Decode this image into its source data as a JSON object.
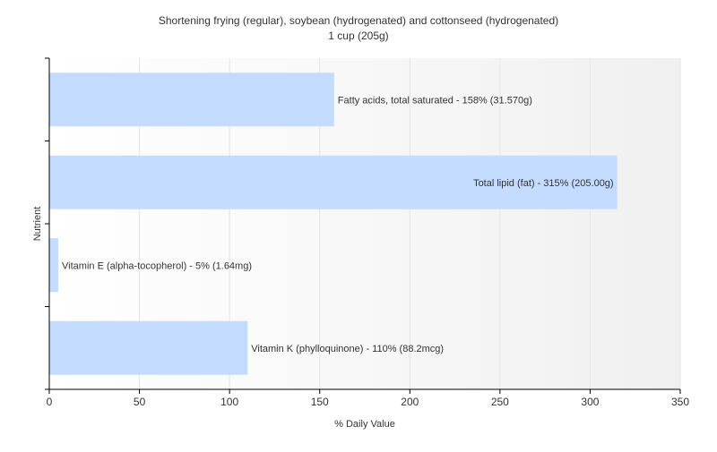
{
  "chart_data": {
    "type": "bar",
    "orientation": "horizontal",
    "title": "Shortening frying (regular), soybean (hydrogenated) and cottonseed (hydrogenated)",
    "subtitle": "1 cup (205g)",
    "xlabel": "% Daily Value",
    "ylabel": "Nutrient",
    "xlim": [
      0,
      350
    ],
    "xticks": [
      0,
      50,
      100,
      150,
      200,
      250,
      300,
      350
    ],
    "grid": true,
    "legend": "none",
    "bar_color": "#c3dcff",
    "categories": [
      "Fatty acids, total saturated",
      "Total lipid (fat)",
      "Vitamin E (alpha-tocopherol)",
      "Vitamin K (phylloquinone)"
    ],
    "values": [
      158,
      315,
      5,
      110
    ],
    "data_labels": [
      "Fatty acids, total saturated - 158% (31.570g)",
      "Total lipid (fat) - 315% (205.00g)",
      "Vitamin E (alpha-tocopherol) - 5% (1.64mg)",
      "Vitamin K (phylloquinone) - 110% (88.2mcg)"
    ]
  }
}
